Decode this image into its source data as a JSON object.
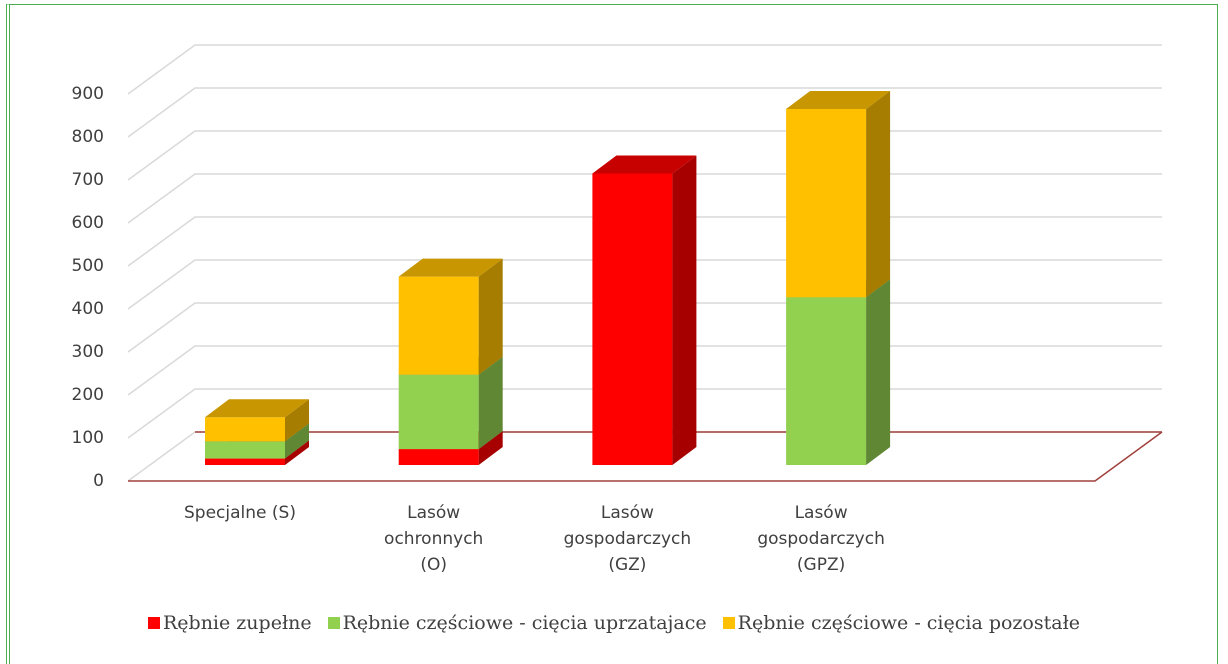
{
  "chart_data": {
    "type": "bar3d_stacked",
    "categories": [
      "Specjalne (S)",
      "Lasów ochronnych (O)",
      "Lasów gospodarczych (GZ)",
      "Lasów gospodarczych (GPZ)"
    ],
    "series": [
      {
        "name": "Rębnie zupełne",
        "color": "#ff0000",
        "values": [
          15,
          37,
          678,
          0
        ]
      },
      {
        "name": "Rębnie częściowe - cięcia uprzatajace",
        "color": "#92d050",
        "values": [
          40,
          173,
          0,
          390
        ]
      },
      {
        "name": "Rębnie częściowe - cięcia pozostałe",
        "color": "#ffc000",
        "values": [
          56,
          228,
          0,
          438
        ]
      }
    ],
    "ylim": [
      0,
      900
    ],
    "yticks": [
      0,
      100,
      200,
      300,
      400,
      500,
      600,
      700,
      800,
      900
    ],
    "grid": true,
    "legend": "bottom"
  }
}
